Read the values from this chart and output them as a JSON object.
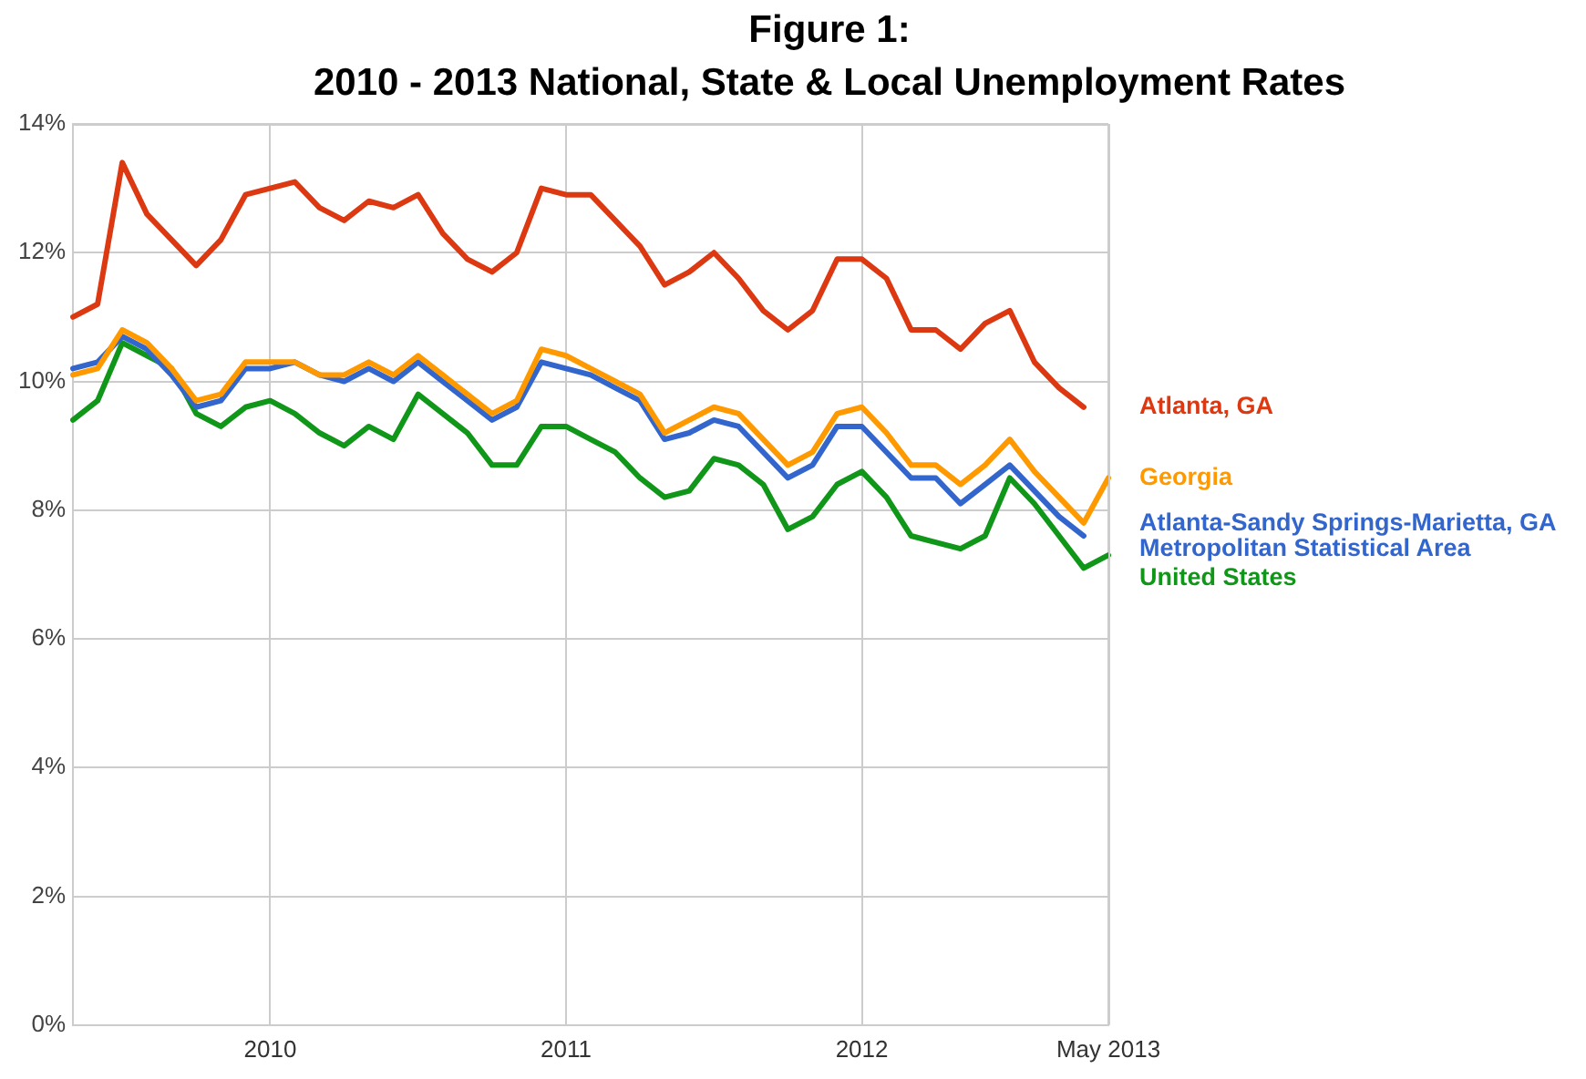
{
  "chart_data": {
    "type": "line",
    "title": "Figure 1:",
    "subtitle": "2010 - 2013 National, State & Local Unemployment Rates",
    "categories": [
      null,
      null,
      null,
      null,
      null,
      null,
      null,
      null,
      "2010",
      null,
      null,
      null,
      null,
      null,
      null,
      null,
      null,
      null,
      null,
      null,
      "2011",
      null,
      null,
      null,
      null,
      null,
      null,
      null,
      null,
      null,
      null,
      null,
      "2012",
      null,
      null,
      null,
      null,
      null,
      null,
      null,
      null,
      null,
      "May 2013"
    ],
    "series": [
      {
        "name": "Atlanta, GA",
        "color": "#dc3912",
        "values": [
          11.0,
          11.2,
          13.4,
          12.6,
          12.2,
          11.8,
          12.2,
          12.9,
          13.0,
          13.1,
          12.7,
          12.5,
          12.8,
          12.7,
          12.9,
          12.3,
          11.9,
          11.7,
          12.0,
          13.0,
          12.9,
          12.9,
          12.5,
          12.1,
          11.5,
          11.7,
          12.0,
          11.6,
          11.1,
          10.8,
          11.1,
          11.9,
          11.9,
          11.6,
          10.8,
          10.8,
          10.5,
          10.9,
          11.1,
          10.3,
          9.9,
          9.6,
          null
        ]
      },
      {
        "name": "Georgia",
        "color": "#ff9900",
        "values": [
          10.1,
          10.2,
          10.8,
          10.6,
          10.2,
          9.7,
          9.8,
          10.3,
          10.3,
          10.3,
          10.1,
          10.1,
          10.3,
          10.1,
          10.4,
          10.1,
          9.8,
          9.5,
          9.7,
          10.5,
          10.4,
          10.2,
          10.0,
          9.8,
          9.2,
          9.4,
          9.6,
          9.5,
          9.1,
          8.7,
          8.9,
          9.5,
          9.6,
          9.2,
          8.7,
          8.7,
          8.4,
          8.7,
          9.1,
          8.6,
          8.2,
          7.8,
          8.5
        ]
      },
      {
        "name": "Atlanta-Sandy Springs-Marietta, GA Metropolitan Statistical Area",
        "color": "#3366cc",
        "values": [
          10.2,
          10.3,
          10.7,
          10.5,
          10.1,
          9.6,
          9.7,
          10.2,
          10.2,
          10.3,
          10.1,
          10.0,
          10.2,
          10.0,
          10.3,
          10.0,
          9.7,
          9.4,
          9.6,
          10.3,
          10.2,
          10.1,
          9.9,
          9.7,
          9.1,
          9.2,
          9.4,
          9.3,
          8.9,
          8.5,
          8.7,
          9.3,
          9.3,
          8.9,
          8.5,
          8.5,
          8.1,
          8.4,
          8.7,
          8.3,
          7.9,
          7.6,
          null
        ]
      },
      {
        "name": "United States",
        "color": "#109618",
        "values": [
          9.4,
          9.7,
          10.6,
          10.4,
          10.2,
          9.5,
          9.3,
          9.6,
          9.7,
          9.5,
          9.2,
          9.0,
          9.3,
          9.1,
          9.8,
          9.5,
          9.2,
          8.7,
          8.7,
          9.3,
          9.3,
          9.1,
          8.9,
          8.5,
          8.2,
          8.3,
          8.8,
          8.7,
          8.4,
          7.7,
          7.9,
          8.4,
          8.6,
          8.2,
          7.6,
          7.5,
          7.4,
          7.6,
          8.5,
          8.1,
          7.6,
          7.1,
          7.3
        ]
      }
    ],
    "ylim": [
      0,
      14
    ],
    "yticks": [
      {
        "value": 0,
        "label": "0%"
      },
      {
        "value": 2,
        "label": "2%"
      },
      {
        "value": 4,
        "label": "4%"
      },
      {
        "value": 6,
        "label": "6%"
      },
      {
        "value": 8,
        "label": "8%"
      },
      {
        "value": 10,
        "label": "10%"
      },
      {
        "value": 12,
        "label": "12%"
      },
      {
        "value": 14,
        "label": "14%"
      }
    ],
    "grid": true,
    "legend": "right",
    "marker": "none",
    "line_style": "solid"
  }
}
